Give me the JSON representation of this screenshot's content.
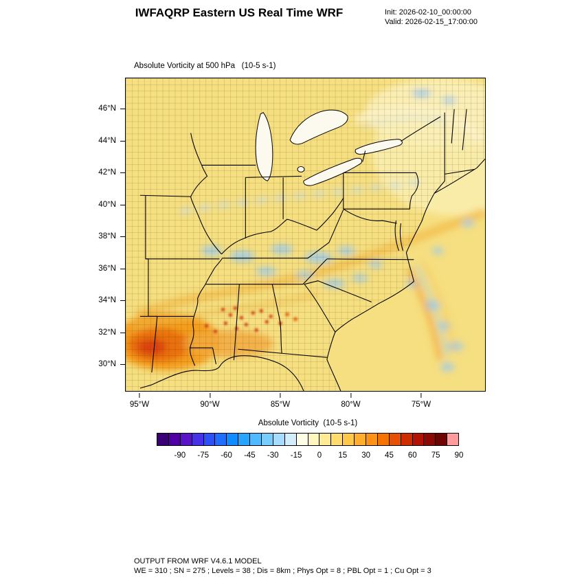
{
  "header": {
    "title": "IWFAQRP Eastern US Real Time WRF",
    "init": "Init: 2026-02-10_00:00:00",
    "valid": "Valid: 2026-02-15_17:00:00"
  },
  "plot": {
    "title": "Absolute Vorticity at 500 hPa   (10-5 s-1)"
  },
  "axes": {
    "lat_ticks": [
      "46°N",
      "44°N",
      "42°N",
      "40°N",
      "38°N",
      "36°N",
      "34°N",
      "32°N",
      "30°N"
    ],
    "lon_ticks": [
      "95°W",
      "90°W",
      "85°W",
      "80°W",
      "75°W"
    ]
  },
  "colorbar": {
    "label": "Absolute Vorticity  (10-5 s-1)",
    "tick_labels": [
      "-90",
      "-75",
      "-60",
      "-45",
      "-30",
      "-15",
      "0",
      "15",
      "30",
      "45",
      "60",
      "75",
      "90"
    ],
    "colors": [
      "#3C0076",
      "#5000A0",
      "#5A14C8",
      "#4632E8",
      "#2D50F8",
      "#1E6EFF",
      "#0F8CFF",
      "#28A5FF",
      "#50B9FF",
      "#78CDFF",
      "#A5DCFF",
      "#D2EDFB",
      "#FEFDE6",
      "#FFF6C0",
      "#FFEB96",
      "#FFDC6E",
      "#FFC84B",
      "#FFAF2D",
      "#FF9114",
      "#F57300",
      "#E65000",
      "#CD2D00",
      "#AF1405",
      "#8C0A05",
      "#6E0505",
      "#FF9B9B"
    ]
  },
  "footer": {
    "line1": "OUTPUT FROM WRF V4.6.1 MODEL",
    "line2": "WE = 310 ; SN = 275 ; Levels = 38 ; Dis = 8km ; Phys Opt = 8 ; PBL Opt = 1 ; Cu Opt = 3"
  },
  "chart_data": {
    "type": "heatmap",
    "title": "Absolute Vorticity at 500 hPa (10-5 s-1)",
    "colorbar_label": "Absolute Vorticity (10-5 s-1)",
    "units": "10^-5 s^-1",
    "colorbar_ticks": [
      -90,
      -75,
      -60,
      -45,
      -30,
      -15,
      0,
      15,
      30,
      45,
      60,
      75,
      90
    ],
    "lat_ticks_deg": [
      46,
      44,
      42,
      40,
      38,
      36,
      34,
      32,
      30
    ],
    "lon_ticks_deg": [
      -95,
      -90,
      -85,
      -80,
      -75
    ],
    "lat_range_approx": [
      28.5,
      48
    ],
    "lon_range_approx": [
      -96,
      -70.5
    ],
    "grid": false,
    "legend_position": "bottom",
    "notable_features": [
      "Broad background field of weak positive vorticity (~5-20) over the eastern US, shown in pale yellow",
      "Strong positive vorticity maximum (~45-90, orange to red core) along the western Gulf Coast over Louisiana/Mississippi near 30-32N, 90-94W",
      "Small embedded red speckle maxima (~60-90) across Alabama and Georgia near 31-33N",
      "Curved yellow-orange vorticity band arcing northeast from the Gulf Coast across Tennessee toward the mid-Atlantic",
      "Scattered weak negative / near-zero patches (light blue, ~-15 to 0) along 36-38N and offshore of the Carolinas",
      "Elongated orange and blue vorticity streaks over the Atlantic southeast of the Carolinas",
      "Pale near-zero swirl over New England / southern Quebec"
    ]
  }
}
